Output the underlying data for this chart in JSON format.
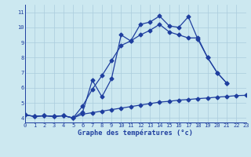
{
  "xlabel": "Graphe des températures (°c)",
  "x": [
    0,
    1,
    2,
    3,
    4,
    5,
    6,
    7,
    8,
    9,
    10,
    11,
    12,
    13,
    14,
    15,
    16,
    17,
    18,
    19,
    20,
    21,
    22,
    23
  ],
  "line1": [
    4.2,
    4.1,
    4.15,
    4.1,
    4.15,
    4.0,
    4.4,
    6.5,
    5.4,
    6.6,
    9.5,
    9.1,
    10.2,
    10.35,
    10.75,
    10.1,
    10.0,
    10.7,
    9.2,
    8.0,
    7.0,
    6.3,
    null,
    null
  ],
  "line2": [
    4.2,
    4.1,
    4.15,
    4.1,
    4.15,
    4.0,
    4.8,
    5.9,
    6.8,
    7.8,
    8.8,
    9.1,
    9.5,
    9.8,
    10.2,
    9.7,
    9.5,
    9.3,
    9.3,
    8.0,
    7.0,
    6.3,
    null,
    null
  ],
  "line3": [
    4.2,
    4.1,
    4.15,
    4.1,
    4.15,
    4.0,
    4.25,
    4.35,
    4.45,
    4.55,
    4.65,
    4.75,
    4.85,
    4.95,
    5.05,
    5.1,
    5.18,
    5.22,
    5.28,
    5.32,
    5.38,
    5.42,
    5.48,
    5.5
  ],
  "ylim": [
    3.7,
    11.5
  ],
  "xlim": [
    0,
    23
  ],
  "yticks": [
    4,
    5,
    6,
    7,
    8,
    9,
    10,
    11
  ],
  "xticks": [
    0,
    1,
    2,
    3,
    4,
    5,
    6,
    7,
    8,
    9,
    10,
    11,
    12,
    13,
    14,
    15,
    16,
    17,
    18,
    19,
    20,
    21,
    22,
    23
  ],
  "line_color": "#1f3f9f",
  "bg_color": "#cce8f0",
  "grid_color": "#aaccdd",
  "axis_label_color": "#1f3f9f",
  "tick_color": "#1f3f9f",
  "marker": "D",
  "markersize": 2.5,
  "linewidth": 0.9,
  "tick_fontsize": 5.0,
  "xlabel_fontsize": 6.2
}
